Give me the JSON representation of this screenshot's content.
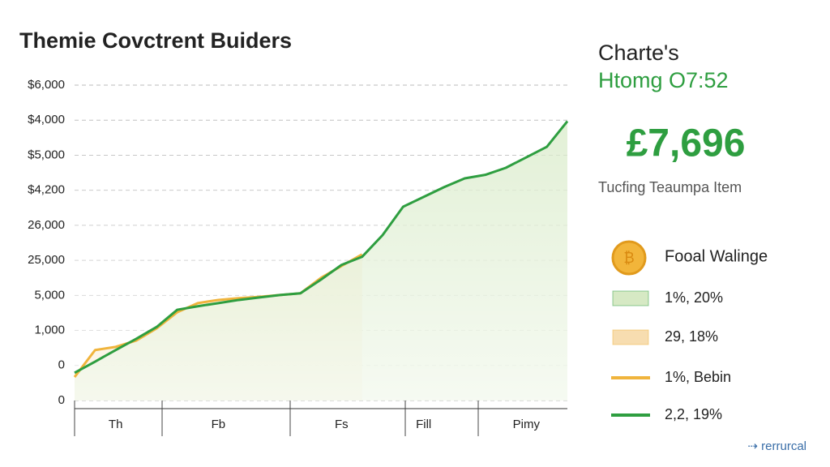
{
  "chart_data": {
    "type": "area",
    "title": "Themie Covctrent Buiders",
    "categories": [
      null,
      null,
      "Th",
      null,
      null,
      null,
      null,
      "Fb",
      null,
      null,
      null,
      null,
      null,
      "Fs",
      null,
      null,
      null,
      "Fill",
      null,
      null,
      null,
      null,
      "Pimy",
      null,
      null
    ],
    "ylim": [
      0,
      9
    ],
    "yticks": [
      {
        "value": 0,
        "label": "0"
      },
      {
        "value": 1,
        "label": "0"
      },
      {
        "value": 2,
        "label": "1,000"
      },
      {
        "value": 3,
        "label": "5,000"
      },
      {
        "value": 4,
        "label": "25,000"
      },
      {
        "value": 5,
        "label": "26,000"
      },
      {
        "value": 6,
        "label": "$4,200"
      },
      {
        "value": 7,
        "label": "$5,000"
      },
      {
        "value": 8,
        "label": "$4,000"
      },
      {
        "value": 9,
        "label": "$6,000"
      }
    ],
    "grid": true,
    "series": [
      {
        "name": "1%, Bebin",
        "color": "#f0b43c",
        "area_name": "29, 18%",
        "area_color": "#f7ddb0",
        "values": [
          0.67,
          1.44,
          1.53,
          1.71,
          2.06,
          2.52,
          2.78,
          2.87,
          2.92,
          2.96,
          3.01,
          3.06,
          3.5,
          3.84,
          4.17,
          null,
          null,
          null,
          null,
          null,
          null,
          null,
          null,
          null,
          null
        ]
      },
      {
        "name": "2,2, 19%",
        "color": "#2e9e40",
        "area_name": "1%, 20%",
        "area_color": "#d6e9c4",
        "values": [
          0.79,
          1.11,
          1.44,
          1.76,
          2.1,
          2.59,
          2.69,
          2.78,
          2.87,
          2.94,
          3.01,
          3.06,
          3.45,
          3.87,
          4.1,
          4.72,
          5.53,
          5.81,
          6.09,
          6.34,
          6.44,
          6.64,
          6.94,
          7.24,
          7.97
        ]
      }
    ]
  },
  "panel": {
    "heading": "Charte's",
    "subheading": "Htomg O7:52",
    "amount": "£7,696",
    "caption": "Tucfing Teaumpa Item",
    "legend_title": "Foоal Walinge",
    "footer": "⇢ rerrurcal"
  }
}
